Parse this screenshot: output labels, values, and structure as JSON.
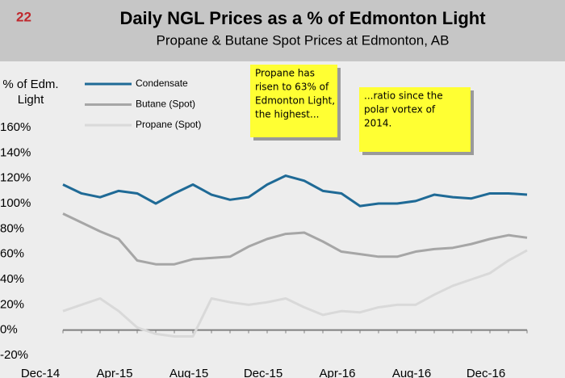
{
  "page_number": "22",
  "chart_data": {
    "type": "line",
    "title": "Daily NGL Prices as a % of Edmonton Light",
    "subtitle": "Propane & Butane Spot Prices at Edmonton, AB",
    "ylabel": [
      "% of Edm.",
      "Light"
    ],
    "x": [
      "Dec-14",
      "Jan-15",
      "Feb-15",
      "Mar-15",
      "Apr-15",
      "May-15",
      "Jun-15",
      "Jul-15",
      "Aug-15",
      "Sep-15",
      "Oct-15",
      "Nov-15",
      "Dec-15",
      "Jan-16",
      "Feb-16",
      "Mar-16",
      "Apr-16",
      "May-16",
      "Jun-16",
      "Jul-16",
      "Aug-16",
      "Sep-16",
      "Oct-16",
      "Nov-16",
      "Dec-16",
      "Jan-17"
    ],
    "xticks": [
      "Dec-14",
      "Apr-15",
      "Aug-15",
      "Dec-15",
      "Apr-16",
      "Aug-16",
      "Dec-16"
    ],
    "ylim": [
      -20,
      160
    ],
    "yticks": [
      {
        "value": -20,
        "label": "-20%"
      },
      {
        "value": 0,
        "label": "0%"
      },
      {
        "value": 20,
        "label": "20%"
      },
      {
        "value": 40,
        "label": "40%"
      },
      {
        "value": 60,
        "label": "60%"
      },
      {
        "value": 80,
        "label": "80%"
      },
      {
        "value": 100,
        "label": "100%"
      },
      {
        "value": 120,
        "label": "120%"
      },
      {
        "value": 140,
        "label": "140%"
      },
      {
        "value": 160,
        "label": "160%"
      }
    ],
    "grid": false,
    "legend": "top-left",
    "series": [
      {
        "name": "Condensate",
        "color": "#1f6a96",
        "values": [
          115,
          108,
          105,
          110,
          108,
          100,
          108,
          115,
          107,
          103,
          105,
          115,
          122,
          118,
          110,
          108,
          98,
          100,
          100,
          102,
          107,
          105,
          104,
          108,
          108,
          107
        ]
      },
      {
        "name": "Butane (Spot)",
        "color": "#a6a6a6",
        "values": [
          92,
          85,
          78,
          72,
          55,
          52,
          52,
          56,
          57,
          58,
          66,
          72,
          76,
          77,
          70,
          62,
          60,
          58,
          58,
          62,
          64,
          65,
          68,
          72,
          75,
          73
        ]
      },
      {
        "name": "Propane (Spot)",
        "color": "#d9d9d9",
        "values": [
          15,
          20,
          25,
          15,
          2,
          -3,
          -5,
          -5,
          25,
          22,
          20,
          22,
          25,
          18,
          12,
          15,
          14,
          18,
          20,
          20,
          28,
          35,
          40,
          45,
          55,
          63
        ]
      }
    ],
    "annotations": [
      [
        "Propane has",
        "risen to 63% of",
        "Edmonton Light,",
        "the highest..."
      ],
      [
        "...ratio since the",
        "polar vortex of",
        "2014."
      ]
    ]
  }
}
